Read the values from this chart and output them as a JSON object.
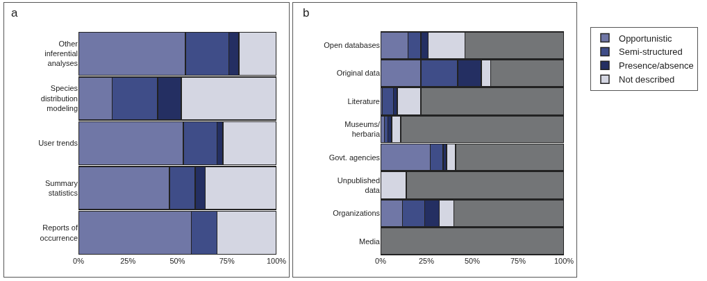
{
  "chart_data": [
    {
      "type": "bar",
      "title": "a",
      "orientation": "horizontal",
      "stacked": true,
      "categories": [
        "Other inferential analyses",
        "Species distribution modeling",
        "User trends",
        "Summary statistics",
        "Reports of occurrence"
      ],
      "series": [
        {
          "color": "#7077a6",
          "values": [
            54,
            17,
            53,
            46,
            57
          ]
        },
        {
          "color": "#3f4d88",
          "values": [
            22,
            23,
            17,
            13,
            13
          ]
        },
        {
          "color": "#242f62",
          "values": [
            5,
            12,
            3,
            5,
            0
          ]
        },
        {
          "color": "#d4d6e2",
          "values": [
            19,
            48,
            27,
            36,
            30
          ]
        }
      ],
      "xlim": [
        0,
        100
      ],
      "xticks": [
        {
          "value": 0,
          "label": "0%"
        },
        {
          "value": 25,
          "label": "25%"
        },
        {
          "value": 50,
          "label": "50%"
        },
        {
          "value": 75,
          "label": "75%"
        },
        {
          "value": 100,
          "label": "100%"
        }
      ],
      "grid": false
    },
    {
      "type": "bar",
      "title": "b",
      "orientation": "horizontal",
      "stacked": true,
      "categories": [
        "Open databases",
        "Original data",
        "Literature",
        "Museums/ herbaria",
        "Govt. agencies",
        "Unpublished data",
        "Organizations",
        "Media"
      ],
      "series": [
        {
          "name": "Opportunistic",
          "color": "#7077a6",
          "values": [
            15,
            22,
            1,
            2,
            27,
            0,
            12,
            0
          ]
        },
        {
          "name": "Semi-structured",
          "color": "#3f4d88",
          "values": [
            7,
            20,
            6,
            2,
            7,
            0,
            12,
            0
          ]
        },
        {
          "name": "Presence/absence",
          "color": "#242f62",
          "values": [
            4,
            13,
            2,
            2,
            2,
            0,
            8,
            0
          ]
        },
        {
          "name": "Not described",
          "color": "#d4d6e2",
          "values": [
            20,
            5,
            13,
            5,
            5,
            14,
            8,
            0
          ]
        },
        {
          "color": "#737577",
          "values": [
            54,
            40,
            78,
            89,
            59,
            86,
            60,
            100
          ]
        }
      ],
      "xlim": [
        0,
        100
      ],
      "xticks": [
        {
          "value": 0,
          "label": "0%"
        },
        {
          "value": 25,
          "label": "25%"
        },
        {
          "value": 50,
          "label": "50%"
        },
        {
          "value": 75,
          "label": "75%"
        },
        {
          "value": 100,
          "label": "100%"
        }
      ],
      "grid": false,
      "legend": "right"
    }
  ]
}
